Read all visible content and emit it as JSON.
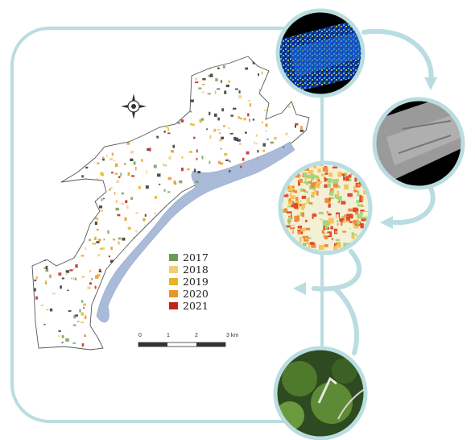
{
  "legend": {
    "items": [
      {
        "label": "2017",
        "color": "#6e9a52"
      },
      {
        "label": "2018",
        "color": "#f0cf73"
      },
      {
        "label": "2019",
        "color": "#e9b325"
      },
      {
        "label": "2020",
        "color": "#e7962a"
      },
      {
        "label": "2021",
        "color": "#c5221c"
      }
    ]
  },
  "scalebar": {
    "ticks": [
      "0",
      "1",
      "2",
      "3 km"
    ]
  },
  "colors": {
    "frame": "#b9dde0",
    "water": "#a9bbd9",
    "boundary": "#555555"
  },
  "north_arrow": {
    "icon": "north-arrow-icon"
  },
  "thumbnails": [
    {
      "name": "lidar-point-cloud-thumbnail"
    },
    {
      "name": "grayscale-elevation-thumbnail"
    },
    {
      "name": "change-heatmap-thumbnail"
    },
    {
      "name": "aerial-photo-thumbnail"
    }
  ]
}
